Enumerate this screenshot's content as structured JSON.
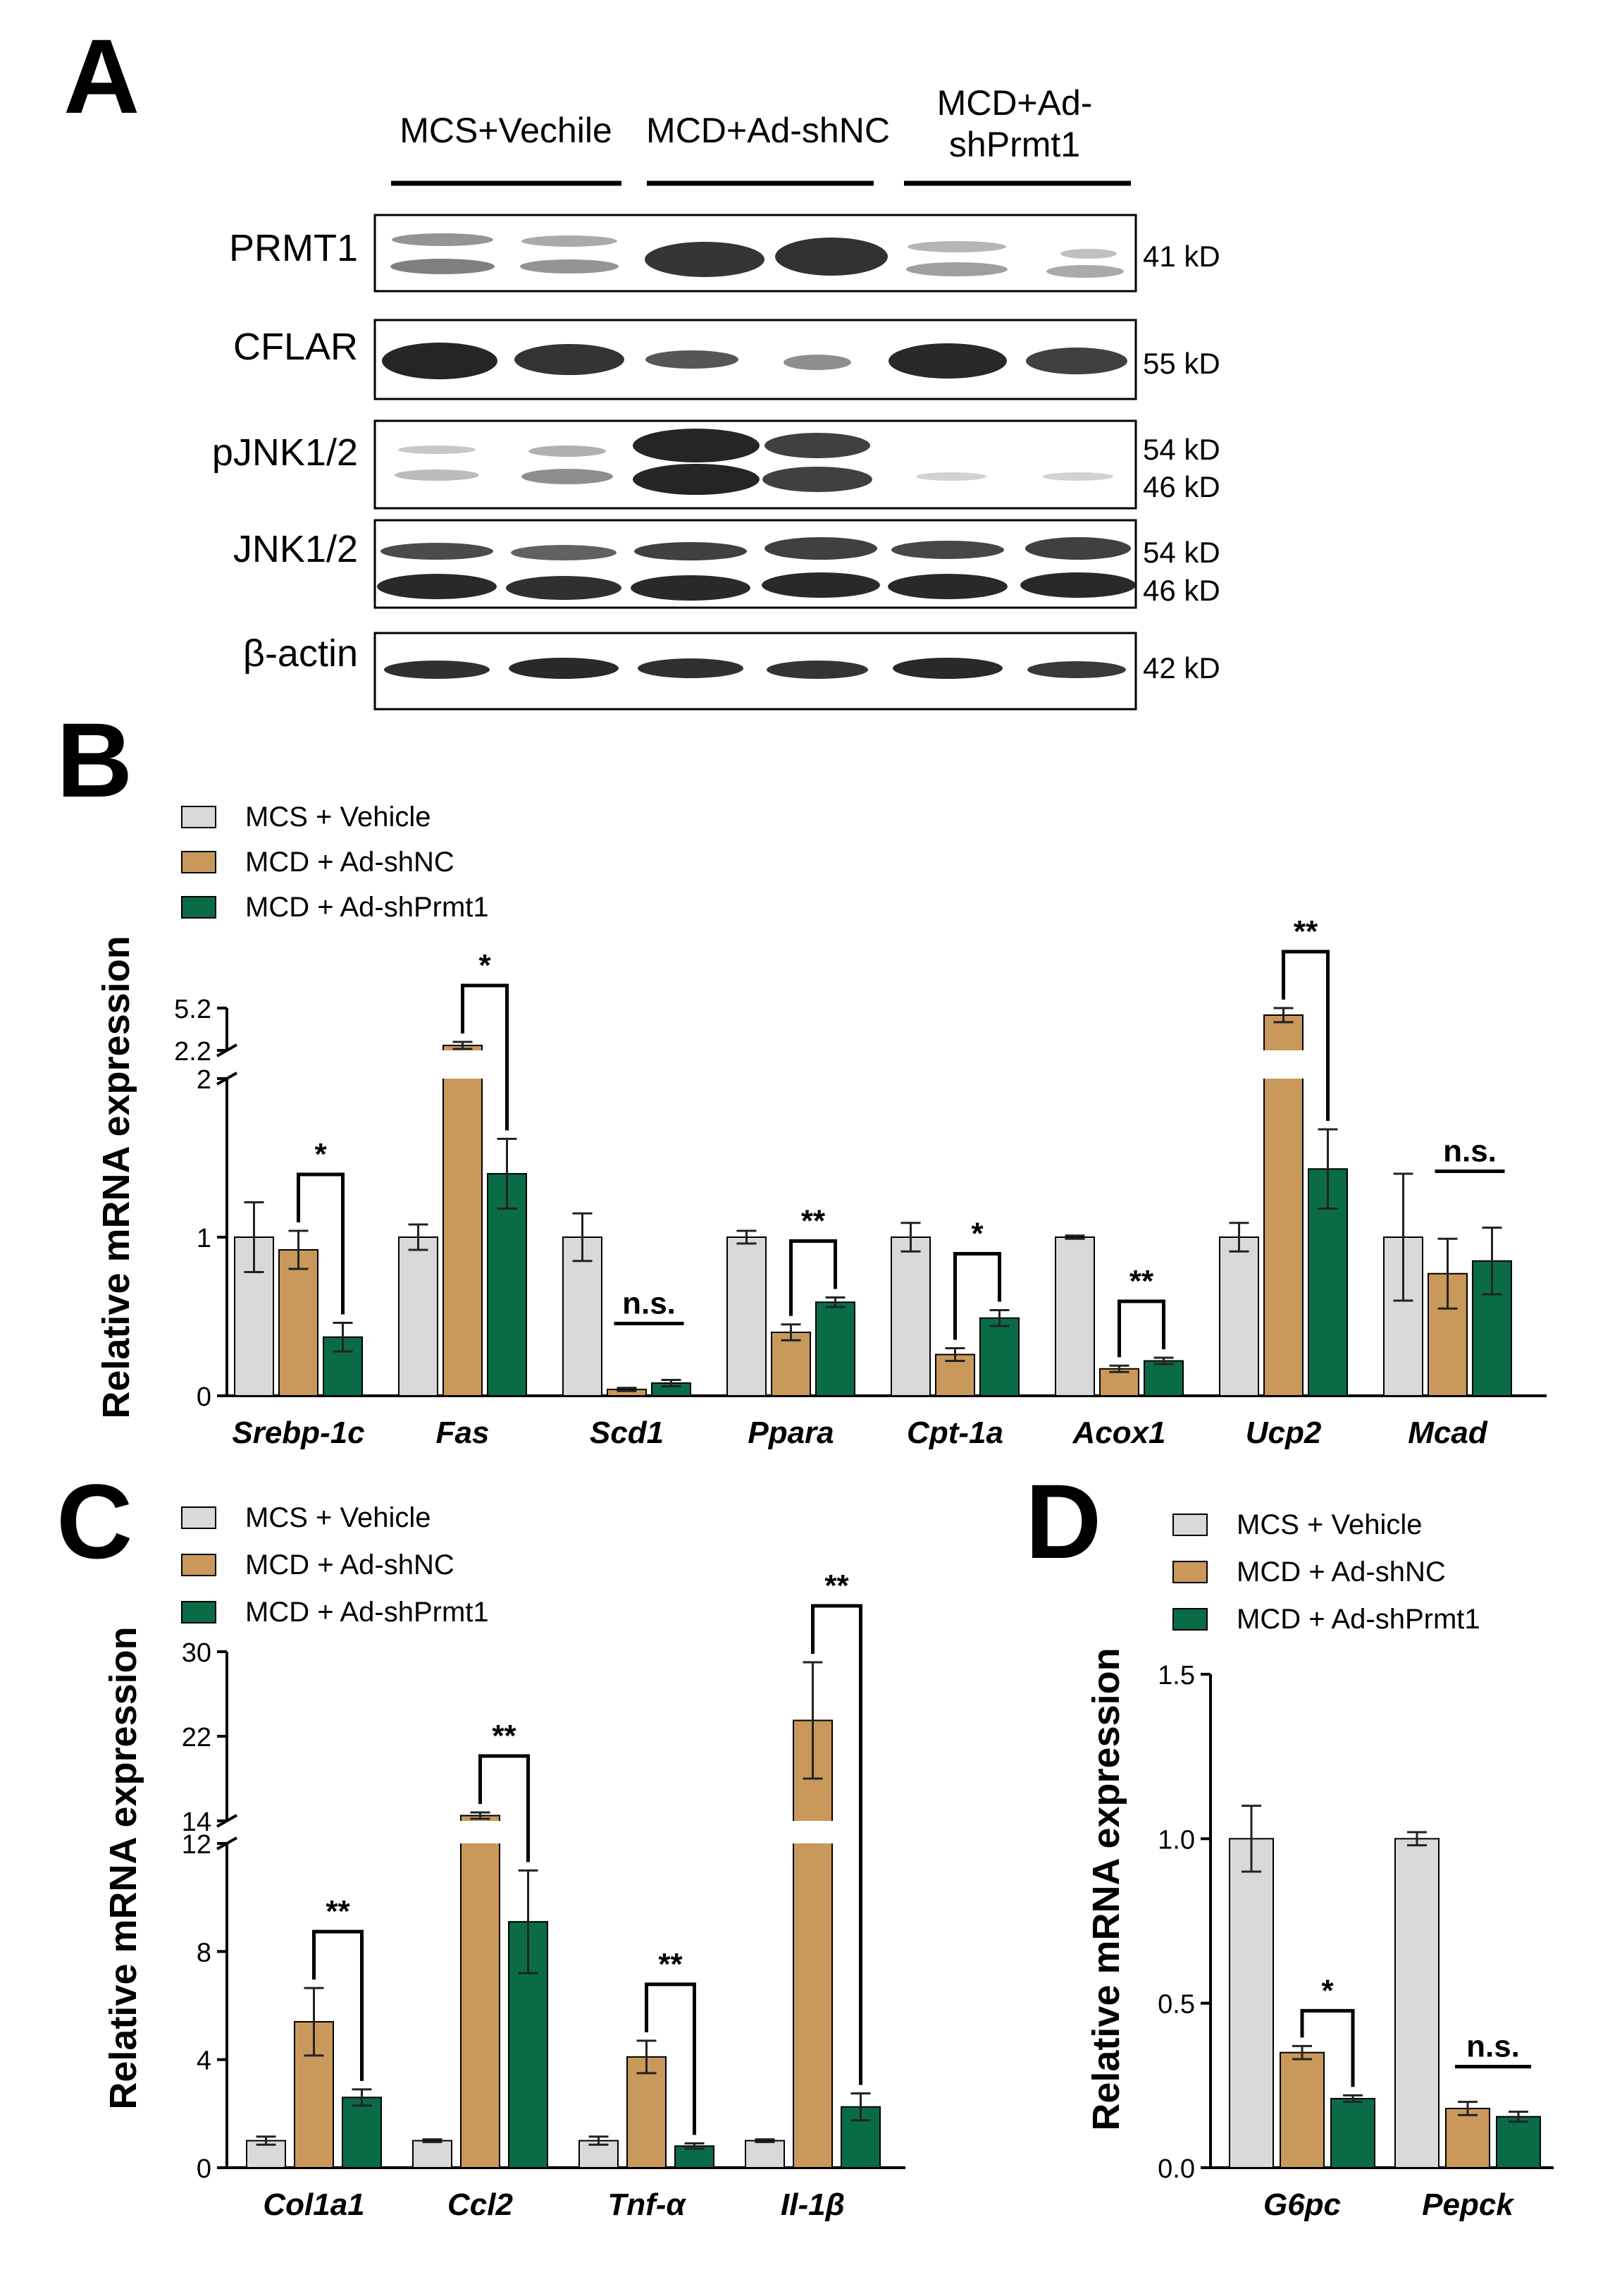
{
  "panels": {
    "A": {
      "letter": "A",
      "groups": [
        {
          "label": "MCS+Vechile"
        },
        {
          "label": "MCD+Ad-shNC"
        },
        {
          "label_line1": "MCD+Ad-",
          "label_line2": "shPrmt1"
        }
      ],
      "blots": [
        {
          "protein": "PRMT1",
          "kd": [
            "41 kD"
          ]
        },
        {
          "protein": "CFLAR",
          "kd": [
            "55 kD"
          ]
        },
        {
          "protein": "pJNK1/2",
          "kd": [
            "54 kD",
            "46 kD"
          ]
        },
        {
          "protein": "JNK1/2",
          "kd": [
            "54 kD",
            "46 kD"
          ]
        },
        {
          "protein": "β-actin",
          "kd": [
            "42 kD"
          ]
        }
      ]
    },
    "B": {
      "letter": "B"
    },
    "C": {
      "letter": "C"
    },
    "D": {
      "letter": "D"
    }
  },
  "colors": {
    "mcs_vehicle": "#d9d9d9",
    "mcd_shnc": "#c8995a",
    "mcd_shprmt1": "#0a6b47"
  },
  "chart_data": [
    {
      "panel": "B",
      "type": "bar",
      "ylabel": "Relative mRNA expression",
      "yticks": [
        "0",
        "1",
        "2",
        "2.2",
        "5.2"
      ],
      "axis_break": {
        "lower": [
          0,
          2
        ],
        "upper": [
          2.2,
          5.2
        ]
      },
      "legend": [
        "MCS + Vehicle",
        "MCD + Ad-shNC",
        "MCD + Ad-shPrmt1"
      ],
      "categories": [
        "Srebp-1c",
        "Fas",
        "Scd1",
        "Ppara",
        "Cpt-1a",
        "Acox1",
        "Ucp2",
        "Mcad"
      ],
      "series": [
        {
          "name": "MCS + Vehicle",
          "values": [
            1.0,
            1.0,
            1.0,
            1.0,
            1.0,
            1.0,
            1.0,
            1.0
          ],
          "errors": [
            0.22,
            0.08,
            0.15,
            0.04,
            0.09,
            0.01,
            0.09,
            0.4
          ]
        },
        {
          "name": "MCD + Ad-shNC",
          "values": [
            0.92,
            2.55,
            0.04,
            0.4,
            0.26,
            0.17,
            4.7,
            0.77
          ],
          "errors": [
            0.12,
            0.25,
            0.01,
            0.05,
            0.04,
            0.02,
            0.5,
            0.22
          ]
        },
        {
          "name": "MCD + Ad-shPrmt1",
          "values": [
            0.37,
            1.4,
            0.08,
            0.59,
            0.49,
            0.22,
            1.43,
            0.85
          ],
          "errors": [
            0.09,
            0.22,
            0.02,
            0.03,
            0.05,
            0.02,
            0.25,
            0.21
          ]
        }
      ],
      "significance": [
        {
          "category": "Srebp-1c",
          "label": "*"
        },
        {
          "category": "Fas",
          "label": "*"
        },
        {
          "category": "Scd1",
          "label": "n.s."
        },
        {
          "category": "Ppara",
          "label": "**"
        },
        {
          "category": "Cpt-1a",
          "label": "*"
        },
        {
          "category": "Acox1",
          "label": "**"
        },
        {
          "category": "Ucp2",
          "label": "**"
        },
        {
          "category": "Mcad",
          "label": "n.s."
        }
      ]
    },
    {
      "panel": "C",
      "type": "bar",
      "ylabel": "Relative mRNA expression",
      "yticks": [
        "0",
        "4",
        "8",
        "12",
        "14",
        "22",
        "30"
      ],
      "axis_break": {
        "lower": [
          0,
          12
        ],
        "upper": [
          14,
          30
        ]
      },
      "legend": [
        "MCS + Vehicle",
        "MCD + Ad-shNC",
        "MCD + Ad-shPrmt1"
      ],
      "categories": [
        "Col1a1",
        "Ccl2",
        "Tnf-α",
        "Il-1β"
      ],
      "series": [
        {
          "name": "MCS + Vehicle",
          "values": [
            1.0,
            1.0,
            1.0,
            1.0
          ],
          "errors": [
            0.15,
            0.05,
            0.15,
            0.05
          ]
        },
        {
          "name": "MCD + Ad-shNC",
          "values": [
            5.4,
            14.5,
            4.1,
            23.5
          ],
          "errors": [
            1.25,
            0.3,
            0.6,
            5.5
          ]
        },
        {
          "name": "MCD + Ad-shPrmt1",
          "values": [
            2.6,
            9.1,
            0.8,
            2.25
          ],
          "errors": [
            0.3,
            1.9,
            0.1,
            0.5
          ]
        }
      ],
      "significance": [
        {
          "category": "Col1a1",
          "label": "**"
        },
        {
          "category": "Ccl2",
          "label": "**"
        },
        {
          "category": "Tnf-α",
          "label": "**"
        },
        {
          "category": "Il-1β",
          "label": "**"
        }
      ]
    },
    {
      "panel": "D",
      "type": "bar",
      "ylabel": "Relative mRNA expression",
      "yticks": [
        "0.0",
        "0.5",
        "1.0",
        "1.5"
      ],
      "ylim": [
        0,
        1.5
      ],
      "legend": [
        "MCS + Vehicle",
        "MCD + Ad-shNC",
        "MCD + Ad-shPrmt1"
      ],
      "categories": [
        "G6pc",
        "Pepck"
      ],
      "series": [
        {
          "name": "MCS + Vehicle",
          "values": [
            1.0,
            1.0
          ],
          "errors": [
            0.1,
            0.02
          ]
        },
        {
          "name": "MCD + Ad-shNC",
          "values": [
            0.35,
            0.18
          ],
          "errors": [
            0.02,
            0.02
          ]
        },
        {
          "name": "MCD + Ad-shPrmt1",
          "values": [
            0.21,
            0.155
          ],
          "errors": [
            0.01,
            0.015
          ]
        }
      ],
      "significance": [
        {
          "category": "G6pc",
          "label": "*"
        },
        {
          "category": "Pepck",
          "label": "n.s."
        }
      ]
    }
  ]
}
